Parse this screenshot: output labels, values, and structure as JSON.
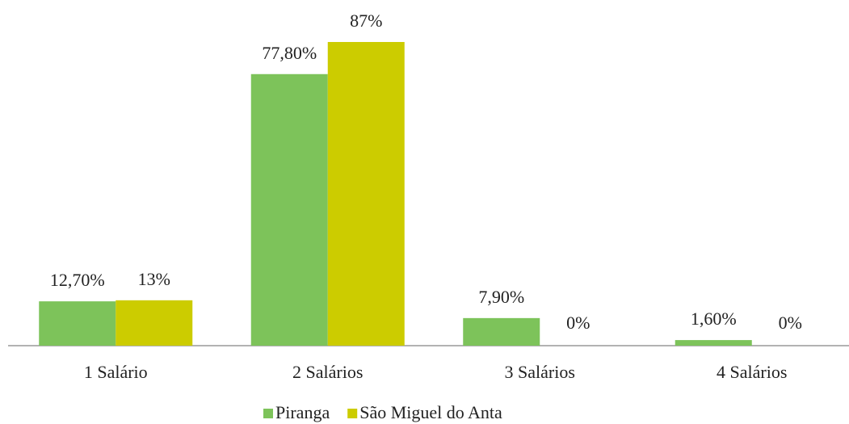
{
  "chart_data": {
    "type": "bar",
    "categories": [
      "1 Salário",
      "2 Salários",
      "3 Salários",
      "4 Salários"
    ],
    "series": [
      {
        "name": "Piranga",
        "color": "#7dc35a",
        "values": [
          12.7,
          77.8,
          7.9,
          1.6
        ],
        "value_labels": [
          "12,70%",
          "77,80%",
          "7,90%",
          "1,60%"
        ]
      },
      {
        "name": "São Miguel do Anta",
        "color": "#cccc00",
        "values": [
          13,
          87,
          0,
          0
        ],
        "value_labels": [
          "13%",
          "87%",
          "0%",
          "0%"
        ]
      }
    ]
  }
}
